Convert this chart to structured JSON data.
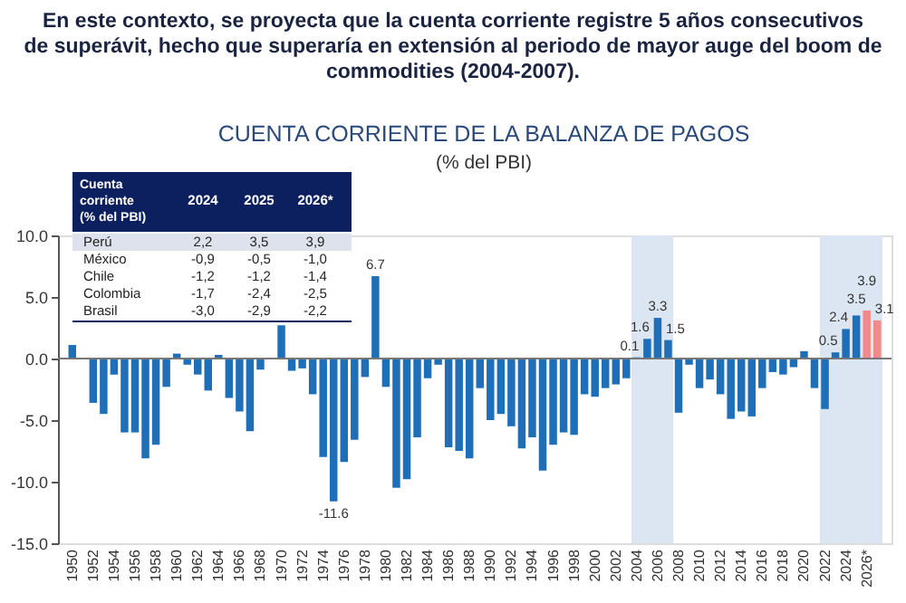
{
  "chart_data": [
    {
      "type": "bar",
      "title": "CUENTA CORRIENTE DE LA BALANZA DE PAGOS",
      "subtitle": "(% del PBI)",
      "annotations": [
        "En este contexto, se proyecta que la cuenta corriente registre 5 años consecutivos de superávit, hecho que superaría en extensión al periodo de mayor auge del boom de commodities (2004-2007)."
      ],
      "x": [
        1950,
        1951,
        1952,
        1953,
        1954,
        1955,
        1956,
        1957,
        1958,
        1959,
        1960,
        1961,
        1962,
        1963,
        1964,
        1965,
        1966,
        1967,
        1968,
        1969,
        1970,
        1971,
        1972,
        1973,
        1974,
        1975,
        1976,
        1977,
        1978,
        1979,
        1980,
        1981,
        1982,
        1983,
        1984,
        1985,
        1986,
        1987,
        1988,
        1989,
        1990,
        1991,
        1992,
        1993,
        1994,
        1995,
        1996,
        1997,
        1998,
        1999,
        2000,
        2001,
        2002,
        2003,
        2004,
        2005,
        2006,
        2007,
        2008,
        2009,
        2010,
        2011,
        2012,
        2013,
        2014,
        2015,
        2016,
        2017,
        2018,
        2019,
        2020,
        2021,
        2022,
        2023,
        2024,
        2025,
        2026,
        2027
      ],
      "values": [
        1.1,
        0.0,
        -3.6,
        -4.5,
        -1.3,
        -6.0,
        -6.0,
        -8.1,
        -7.0,
        -2.3,
        0.4,
        -0.5,
        -1.3,
        -2.6,
        0.3,
        -3.2,
        -4.3,
        -5.9,
        -0.9,
        0.0,
        2.7,
        -1.0,
        -0.8,
        -2.9,
        -8.0,
        -11.6,
        -8.4,
        -6.6,
        -1.5,
        6.7,
        -2.3,
        -10.5,
        -9.8,
        -6.4,
        -1.6,
        -0.5,
        -7.2,
        -7.5,
        -8.1,
        -2.4,
        -5.0,
        -4.5,
        -5.5,
        -7.3,
        -6.4,
        -9.1,
        -7.0,
        -6.0,
        -6.2,
        -2.9,
        -3.1,
        -2.4,
        -2.1,
        -1.6,
        0.1,
        1.6,
        3.3,
        1.5,
        -4.4,
        -0.5,
        -2.4,
        -1.7,
        -2.9,
        -4.9,
        -4.3,
        -4.7,
        -2.4,
        -1.1,
        -1.3,
        -0.7,
        0.6,
        -2.4,
        -4.1,
        0.5,
        2.4,
        3.5,
        3.9,
        3.1
      ],
      "colors": [
        "#1f6fb8",
        "#1f6fb8",
        "#1f6fb8",
        "#1f6fb8",
        "#1f6fb8",
        "#1f6fb8",
        "#1f6fb8",
        "#1f6fb8",
        "#1f6fb8",
        "#1f6fb8",
        "#1f6fb8",
        "#1f6fb8",
        "#1f6fb8",
        "#1f6fb8",
        "#1f6fb8",
        "#1f6fb8",
        "#1f6fb8",
        "#1f6fb8",
        "#1f6fb8",
        "#1f6fb8",
        "#1f6fb8",
        "#1f6fb8",
        "#1f6fb8",
        "#1f6fb8",
        "#1f6fb8",
        "#1f6fb8",
        "#1f6fb8",
        "#1f6fb8",
        "#1f6fb8",
        "#1f6fb8",
        "#1f6fb8",
        "#1f6fb8",
        "#1f6fb8",
        "#1f6fb8",
        "#1f6fb8",
        "#1f6fb8",
        "#1f6fb8",
        "#1f6fb8",
        "#1f6fb8",
        "#1f6fb8",
        "#1f6fb8",
        "#1f6fb8",
        "#1f6fb8",
        "#1f6fb8",
        "#1f6fb8",
        "#1f6fb8",
        "#1f6fb8",
        "#1f6fb8",
        "#1f6fb8",
        "#1f6fb8",
        "#1f6fb8",
        "#1f6fb8",
        "#1f6fb8",
        "#1f6fb8",
        "#1f6fb8",
        "#1f6fb8",
        "#1f6fb8",
        "#1f6fb8",
        "#1f6fb8",
        "#1f6fb8",
        "#1f6fb8",
        "#1f6fb8",
        "#1f6fb8",
        "#1f6fb8",
        "#1f6fb8",
        "#1f6fb8",
        "#1f6fb8",
        "#1f6fb8",
        "#1f6fb8",
        "#1f6fb8",
        "#1f6fb8",
        "#1f6fb8",
        "#1f6fb8",
        "#1f6fb8",
        "#1f6fb8",
        "#1f6fb8",
        "#f08a8a",
        "#f08a8a"
      ],
      "value_labels": [
        null,
        null,
        null,
        null,
        null,
        null,
        null,
        null,
        null,
        null,
        null,
        null,
        null,
        null,
        null,
        null,
        null,
        null,
        null,
        null,
        null,
        null,
        null,
        null,
        null,
        "-11.6",
        null,
        null,
        null,
        "6.7",
        null,
        null,
        null,
        null,
        null,
        null,
        null,
        null,
        null,
        null,
        null,
        null,
        null,
        null,
        null,
        null,
        null,
        null,
        null,
        null,
        null,
        null,
        null,
        null,
        "0.1",
        "1.6",
        "3.3",
        "1.5",
        null,
        null,
        null,
        null,
        null,
        null,
        null,
        null,
        null,
        null,
        null,
        null,
        null,
        null,
        null,
        "0.5",
        "2.4",
        "3.5",
        "3.9",
        "3.1"
      ],
      "xlim": [
        1949.5,
        2027.5
      ],
      "xticks": [
        1950,
        1952,
        1954,
        1956,
        1958,
        1960,
        1962,
        1964,
        1966,
        1968,
        1970,
        1972,
        1974,
        1976,
        1978,
        1980,
        1982,
        1984,
        1986,
        1988,
        1990,
        1992,
        1994,
        1996,
        1998,
        2000,
        2002,
        2004,
        2006,
        2008,
        2010,
        2012,
        2014,
        2016,
        2018,
        2020,
        2022,
        2024,
        {
          "value": 2026,
          "label": "2026*"
        }
      ],
      "ylim": [
        -15,
        10
      ],
      "yticks": [
        {
          "value": -15,
          "label": "-15.0"
        },
        {
          "value": -10,
          "label": "-10.0"
        },
        {
          "value": -5,
          "label": "-5.0"
        },
        {
          "value": 0,
          "label": "0.0"
        },
        {
          "value": 5,
          "label": "5.0"
        },
        {
          "value": 10,
          "label": "10.0"
        }
      ],
      "bands": [
        {
          "axis": "x",
          "from": 2003.5,
          "to": 2007.5,
          "label": null,
          "color": "#dbe6f2"
        },
        {
          "axis": "x",
          "from": 2021.5,
          "to": 2027.5,
          "label": null,
          "color": "#dbe6f2"
        }
      ]
    },
    {
      "type": "heatmap",
      "title": "Cuenta corriente (% del PBI)",
      "categories": [
        "2024",
        "2025",
        "2026*"
      ],
      "y_categories": [
        "Perú",
        "México",
        "Chile",
        "Colombia",
        "Brasil"
      ],
      "cells": [
        [
          2.2,
          3.5,
          3.9
        ],
        [
          -0.9,
          -0.5,
          -1.0
        ],
        [
          -1.2,
          -1.2,
          -1.4
        ],
        [
          -1.7,
          -2.4,
          -2.5
        ],
        [
          -3.0,
          -2.9,
          -2.2
        ]
      ],
      "cell_labels": [
        [
          "2,2",
          "3,5",
          "3,9"
        ],
        [
          "-0,9",
          "-0,5",
          "-1,0"
        ],
        [
          "-1,2",
          "-1,2",
          "-1,4"
        ],
        [
          "-1,7",
          "-2,4",
          "-2,5"
        ],
        [
          "-3,0",
          "-2,9",
          "-2,2"
        ]
      ]
    }
  ]
}
